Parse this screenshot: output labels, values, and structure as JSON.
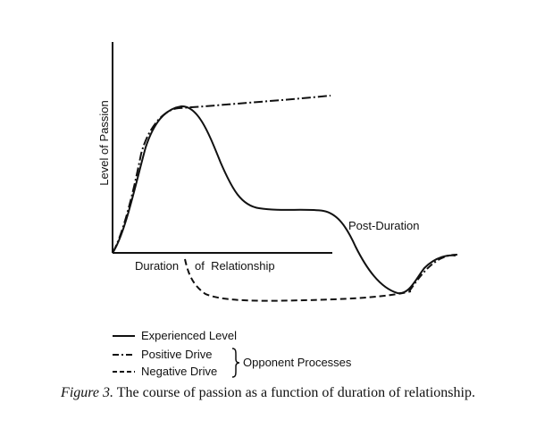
{
  "diagram": {
    "y_axis_label": "Level of Passion",
    "x_axis_label_part1": "Duration",
    "x_axis_label_part2": "of  Relationship",
    "post_duration_label": "Post-Duration",
    "legend": {
      "experienced": "Experienced Level",
      "positive": "Positive Drive",
      "negative": "Negative Drive",
      "opponent": "Opponent Processes"
    }
  },
  "caption": {
    "figure_label": "Figure 3.",
    "text": " The course of passion as a function of duration of relationship."
  }
}
